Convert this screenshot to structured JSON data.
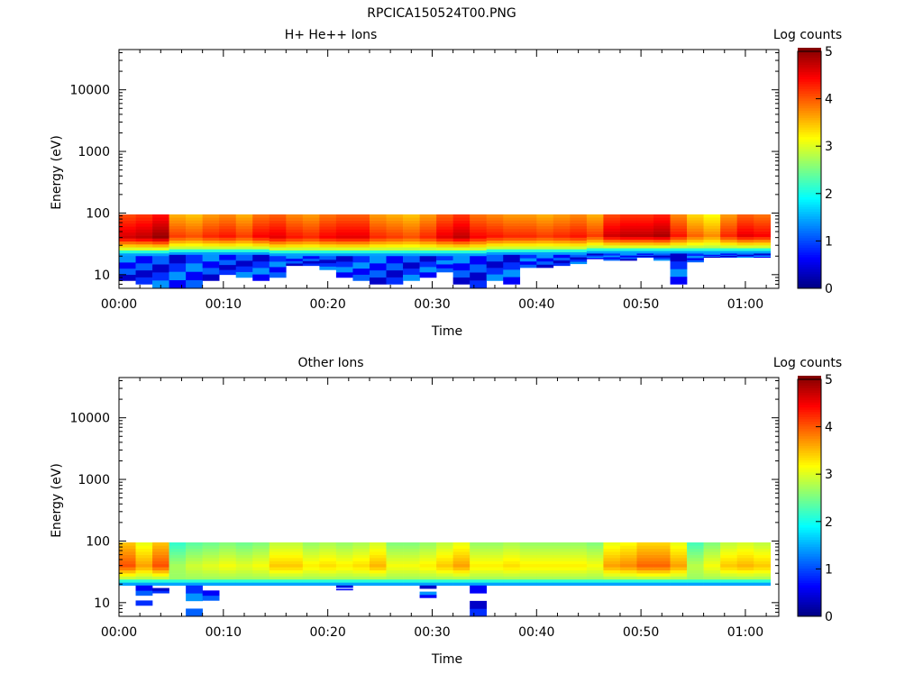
{
  "figure_title": "RPCICA150524T00.PNG",
  "chart_data": [
    {
      "type": "heatmap",
      "title": "H+ He++ Ions",
      "xlabel": "Time",
      "ylabel": "Energy (eV)",
      "colorbar_label": "Log counts",
      "colorbar_ticks": [
        "0",
        "1",
        "2",
        "3",
        "4",
        "5"
      ],
      "colorbar_range": [
        0,
        5
      ],
      "colormap": "jet",
      "ylog": true,
      "ylim": [
        6,
        45000
      ],
      "y_ticks": [
        10,
        100,
        1000,
        10000
      ],
      "y_tick_labels": [
        "10",
        "100",
        "1000",
        "10000"
      ],
      "xlim_minutes": [
        0,
        63.2
      ],
      "x_tick_labels": [
        "00:00",
        "00:10",
        "00:20",
        "00:30",
        "00:40",
        "00:50",
        "01:00"
      ],
      "x_tick_minutes": [
        0,
        10,
        20,
        30,
        40,
        50,
        60
      ],
      "time_bins_minutes": [
        0,
        1.6,
        3.2,
        4.8,
        6.4,
        8.0,
        9.6,
        11.2,
        12.8,
        14.4,
        16.0,
        17.6,
        19.2,
        20.8,
        22.4,
        24.0,
        25.6,
        27.2,
        28.8,
        30.4,
        32.0,
        33.6,
        35.2,
        36.8,
        38.4,
        40.0,
        41.6,
        43.2,
        44.8,
        46.4,
        48.0,
        49.6,
        51.2,
        52.8,
        54.4,
        56.0,
        57.6,
        59.2,
        60.8,
        62.4
      ],
      "peak_log_counts": [
        4.6,
        4.7,
        4.9,
        4.1,
        4.0,
        4.2,
        4.3,
        4.1,
        4.4,
        4.5,
        4.3,
        4.2,
        4.4,
        4.5,
        4.5,
        4.2,
        4.1,
        4.0,
        4.2,
        4.5,
        4.7,
        4.4,
        4.3,
        4.2,
        4.2,
        4.1,
        4.2,
        4.3,
        4.1,
        4.6,
        4.7,
        4.7,
        4.8,
        4.3,
        3.9,
        3.7,
        4.2,
        4.5,
        4.4
      ],
      "band_floor_eV": [
        20,
        20,
        20,
        21,
        21,
        21,
        21,
        21,
        21,
        20,
        20,
        20,
        20,
        20,
        20,
        20,
        20,
        20,
        20,
        20,
        20,
        20,
        21,
        21,
        21,
        21,
        21,
        21,
        22,
        22,
        22,
        22,
        22,
        22,
        22,
        22,
        22,
        22,
        22
      ],
      "band_top_eV": 95,
      "low_energy_min_eV": [
        8,
        7,
        6,
        6,
        6,
        8,
        10,
        9,
        8,
        9,
        14,
        14,
        12,
        9,
        8,
        7,
        7,
        8,
        9,
        11,
        7,
        6,
        8,
        7,
        13,
        13,
        14,
        15,
        18,
        17,
        17,
        19,
        17,
        7,
        16,
        19,
        19,
        19,
        19
      ]
    },
    {
      "type": "heatmap",
      "title": "Other Ions",
      "xlabel": "Time",
      "ylabel": "Energy (eV)",
      "colorbar_label": "Log counts",
      "colorbar_ticks": [
        "0",
        "1",
        "2",
        "3",
        "4",
        "5"
      ],
      "colorbar_range": [
        0,
        5
      ],
      "colormap": "jet",
      "ylog": true,
      "ylim": [
        6,
        45000
      ],
      "y_ticks": [
        10,
        100,
        1000,
        10000
      ],
      "y_tick_labels": [
        "10",
        "100",
        "1000",
        "10000"
      ],
      "xlim_minutes": [
        0,
        63.2
      ],
      "x_tick_labels": [
        "00:00",
        "00:10",
        "00:20",
        "00:30",
        "00:40",
        "00:50",
        "01:00"
      ],
      "x_tick_minutes": [
        0,
        10,
        20,
        30,
        40,
        50,
        60
      ],
      "time_bins_minutes": [
        0,
        1.6,
        3.2,
        4.8,
        6.4,
        8.0,
        9.6,
        11.2,
        12.8,
        14.4,
        16.0,
        17.6,
        19.2,
        20.8,
        22.4,
        24.0,
        25.6,
        27.2,
        28.8,
        30.4,
        32.0,
        33.6,
        35.2,
        36.8,
        38.4,
        40.0,
        41.6,
        43.2,
        44.8,
        46.4,
        48.0,
        49.6,
        51.2,
        52.8,
        54.4,
        56.0,
        57.6,
        59.2,
        60.8,
        62.4
      ],
      "peak_log_counts": [
        4.0,
        3.6,
        4.0,
        2.7,
        2.9,
        3.0,
        3.1,
        3.0,
        3.1,
        3.4,
        3.4,
        3.2,
        3.3,
        3.2,
        3.3,
        3.5,
        3.1,
        3.1,
        3.2,
        3.4,
        3.6,
        3.2,
        3.2,
        3.3,
        3.2,
        3.2,
        3.2,
        3.2,
        3.1,
        3.6,
        3.7,
        3.9,
        3.9,
        3.6,
        2.8,
        3.1,
        3.4,
        3.5,
        3.4
      ],
      "band_floor_eV": [
        19,
        19,
        19,
        19,
        19,
        19,
        19,
        19,
        19,
        19,
        19,
        19,
        19,
        19,
        19,
        19,
        19,
        19,
        19,
        19,
        19,
        19,
        19,
        19,
        19,
        19,
        19,
        19,
        19,
        19,
        19,
        19,
        19,
        19,
        19,
        19,
        19,
        19,
        19
      ],
      "band_top_eV": 95,
      "low_energy_min_eV": [
        19,
        9,
        13,
        19,
        6,
        9,
        19,
        19,
        19,
        19,
        19,
        19,
        19,
        16,
        19,
        19,
        19,
        19,
        12,
        19,
        19,
        6,
        19,
        19,
        19,
        19,
        19,
        19,
        19,
        19,
        19,
        19,
        19,
        19,
        19,
        19,
        19,
        19,
        19
      ]
    }
  ]
}
